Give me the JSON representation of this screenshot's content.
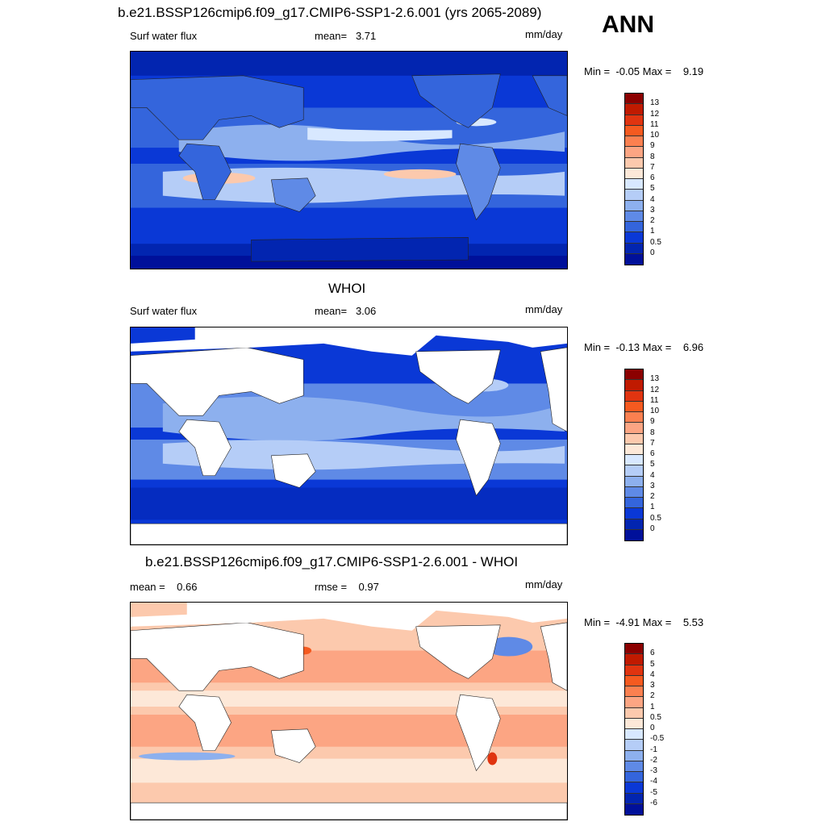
{
  "header": {
    "ann": "ANN"
  },
  "panels": [
    {
      "title": "b.e21.BSSP126cmip6.f09_g17.CMIP6-SSP1-2.6.001 (yrs 2065-2089)",
      "left": "Surf water flux",
      "center": "mean=   3.71",
      "units": "mm/day",
      "minmax": "Min =  -0.05 Max =    9.19",
      "colorbar_labels": [
        "13",
        "12",
        "11",
        "10",
        "9",
        "8",
        "7",
        "6",
        "5",
        "4",
        "3",
        "2",
        "1",
        "0.5",
        "0"
      ],
      "colorbar_colors": [
        "#8b0000",
        "#c01a00",
        "#e03410",
        "#f55a20",
        "#fb8050",
        "#fca583",
        "#fcc9ad",
        "#fde8d8",
        "#d8e8ff",
        "#b5cdf7",
        "#8db0ee",
        "#5f8ae6",
        "#3465dc",
        "#0a38d6",
        "#0225b0",
        "#00109a"
      ]
    },
    {
      "title": "WHOI",
      "left": "Surf water flux",
      "center": "mean=   3.06",
      "units": "mm/day",
      "minmax": "Min =  -0.13 Max =    6.96",
      "colorbar_labels": [
        "13",
        "12",
        "11",
        "10",
        "9",
        "8",
        "7",
        "6",
        "5",
        "4",
        "3",
        "2",
        "1",
        "0.5",
        "0"
      ],
      "colorbar_colors": [
        "#8b0000",
        "#c01a00",
        "#e03410",
        "#f55a20",
        "#fb8050",
        "#fca583",
        "#fcc9ad",
        "#fde8d8",
        "#d8e8ff",
        "#b5cdf7",
        "#8db0ee",
        "#5f8ae6",
        "#3465dc",
        "#0a38d6",
        "#0225b0",
        "#00109a"
      ]
    },
    {
      "title": "b.e21.BSSP126cmip6.f09_g17.CMIP6-SSP1-2.6.001 - WHOI",
      "left": "mean =    0.66",
      "center": "rmse =    0.97",
      "units": "mm/day",
      "minmax": "Min =  -4.91 Max =    5.53",
      "colorbar_labels": [
        "6",
        "5",
        "4",
        "3",
        "2",
        "1",
        "0.5",
        "0",
        "-0.5",
        "-1",
        "-2",
        "-3",
        "-4",
        "-5",
        "-6"
      ],
      "colorbar_colors": [
        "#8b0000",
        "#c01a00",
        "#e03410",
        "#f55a20",
        "#fb8050",
        "#fca583",
        "#fcc9ad",
        "#fde8d8",
        "#d8e8ff",
        "#b5cdf7",
        "#8db0ee",
        "#5f8ae6",
        "#3465dc",
        "#0a38d6",
        "#0225b0",
        "#00109a"
      ]
    }
  ]
}
